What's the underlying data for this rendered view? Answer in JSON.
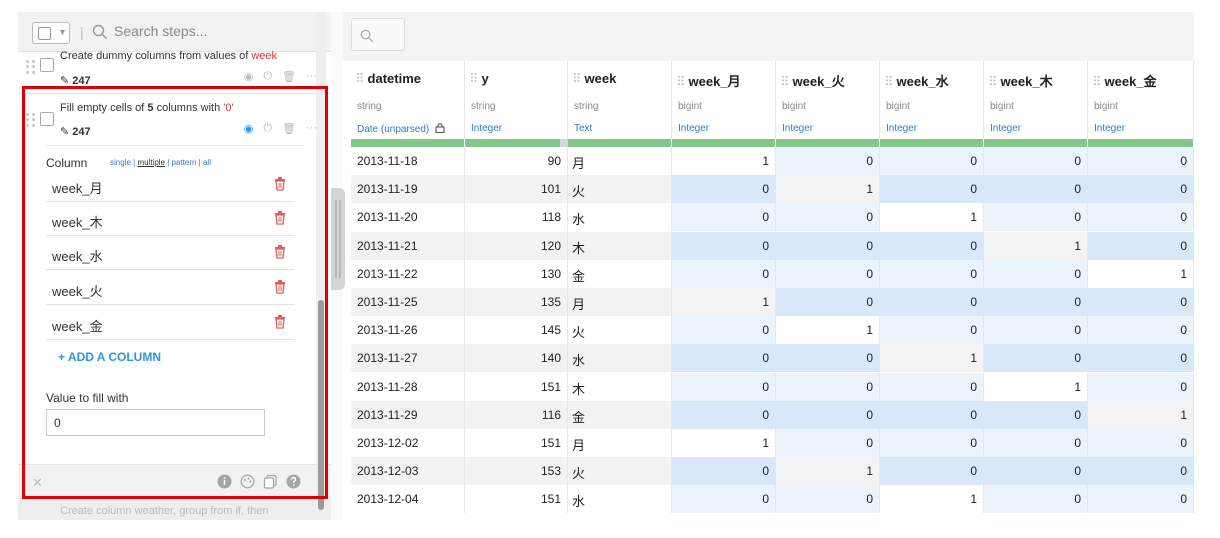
{
  "left_panel": {
    "search_placeholder": "Search steps...",
    "prev_step": {
      "title_prefix": "Create dummy columns from values of ",
      "title_highlight": "week",
      "count": "247"
    },
    "active_step": {
      "title_prefix": "Fill empty cells of ",
      "title_count": "5",
      "title_mid": " columns with ",
      "title_value": "'0'",
      "count": "247",
      "column_label": "Column",
      "modes": [
        "single",
        "multiple",
        "pattern",
        "all"
      ],
      "columns": [
        "week_月",
        "week_木",
        "week_水",
        "week_火",
        "week_金"
      ],
      "add_column": "+ ADD A COLUMN",
      "fill_label": "Value to fill with",
      "fill_value": "0"
    },
    "next_step": {
      "title": "Create column weather, group from if, then"
    }
  },
  "table": {
    "columns": [
      {
        "name": "datetime",
        "type": "string",
        "sub": "Date (unparsed)"
      },
      {
        "name": "y",
        "type": "string",
        "sub": "Integer"
      },
      {
        "name": "week",
        "type": "string",
        "sub": "Text"
      },
      {
        "name": "week_月",
        "type": "bigint",
        "sub": "Integer"
      },
      {
        "name": "week_火",
        "type": "bigint",
        "sub": "Integer"
      },
      {
        "name": "week_水",
        "type": "bigint",
        "sub": "Integer"
      },
      {
        "name": "week_木",
        "type": "bigint",
        "sub": "Integer"
      },
      {
        "name": "week_金",
        "type": "bigint",
        "sub": "Integer"
      }
    ],
    "rows": [
      [
        "2013-11-18",
        "90",
        "月",
        "1",
        "0",
        "0",
        "0",
        "0"
      ],
      [
        "2013-11-19",
        "101",
        "火",
        "0",
        "1",
        "0",
        "0",
        "0"
      ],
      [
        "2013-11-20",
        "118",
        "水",
        "0",
        "0",
        "1",
        "0",
        "0"
      ],
      [
        "2013-11-21",
        "120",
        "木",
        "0",
        "0",
        "0",
        "1",
        "0"
      ],
      [
        "2013-11-22",
        "130",
        "金",
        "0",
        "0",
        "0",
        "0",
        "1"
      ],
      [
        "2013-11-25",
        "135",
        "月",
        "1",
        "0",
        "0",
        "0",
        "0"
      ],
      [
        "2013-11-26",
        "145",
        "火",
        "0",
        "1",
        "0",
        "0",
        "0"
      ],
      [
        "2013-11-27",
        "140",
        "水",
        "0",
        "0",
        "1",
        "0",
        "0"
      ],
      [
        "2013-11-28",
        "151",
        "木",
        "0",
        "0",
        "0",
        "1",
        "0"
      ],
      [
        "2013-11-29",
        "116",
        "金",
        "0",
        "0",
        "0",
        "0",
        "1"
      ],
      [
        "2013-12-02",
        "151",
        "月",
        "1",
        "0",
        "0",
        "0",
        "0"
      ],
      [
        "2013-12-03",
        "153",
        "火",
        "0",
        "1",
        "0",
        "0",
        "0"
      ],
      [
        "2013-12-04",
        "151",
        "水",
        "0",
        "0",
        "1",
        "0",
        "0"
      ]
    ]
  },
  "colors": {
    "highlight_box": "#e00000",
    "link_blue": "#2e7bd1",
    "add_blue": "#2e95e0",
    "cell_blue": "#d8e8f8",
    "cell_blue_light": "#ebf3fc",
    "cell_gray": "#f3f3f3",
    "green_bar": "#86c88a",
    "trash_red": "#e35b5b"
  }
}
